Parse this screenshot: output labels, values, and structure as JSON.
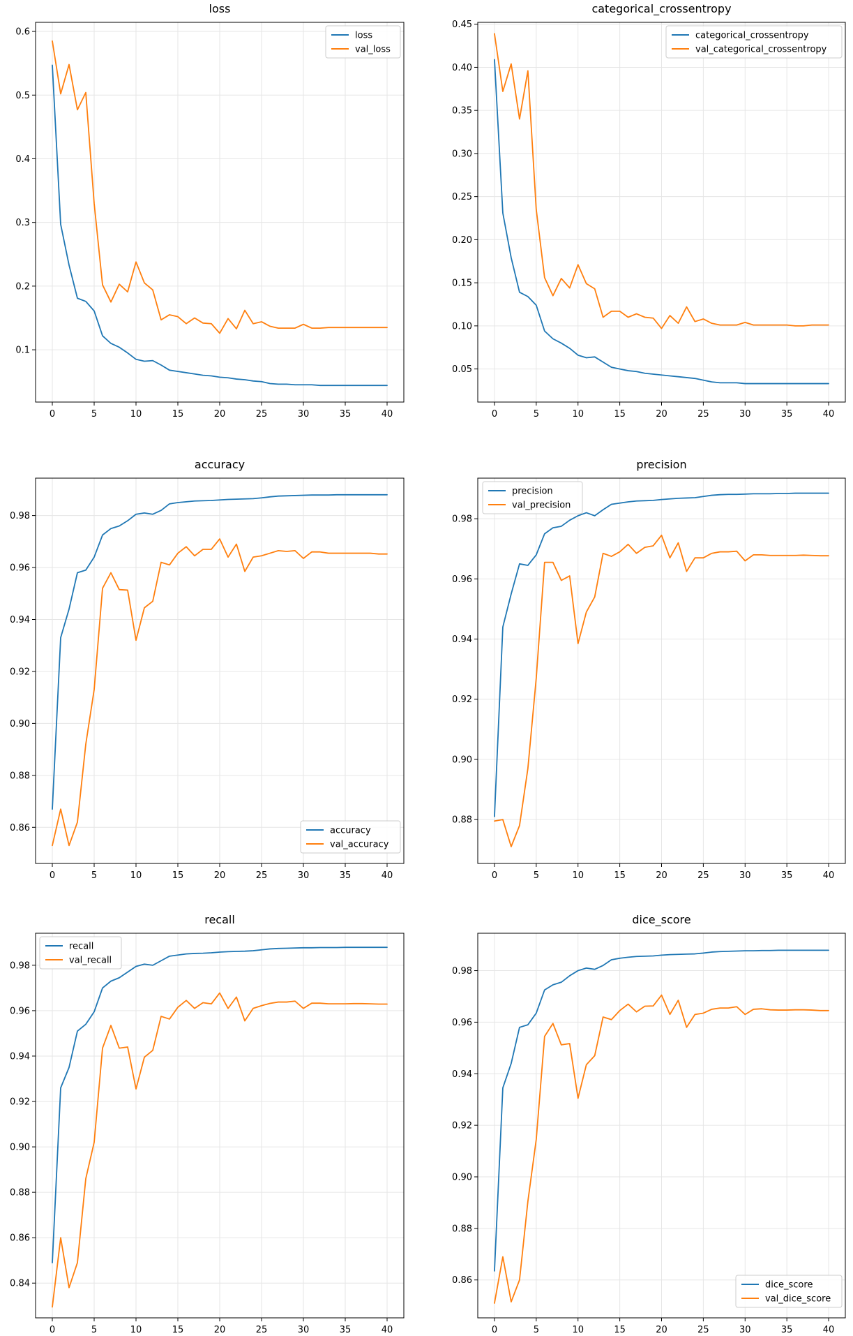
{
  "colors": {
    "train": "#1f77b4",
    "val": "#ff7f0e",
    "grid": "#e6e6e6",
    "frame": "#000000",
    "background": "#ffffff"
  },
  "chart_data": [
    {
      "type": "line",
      "title": "loss",
      "legend": "upper right",
      "xlim": [
        -2,
        42
      ],
      "xticks": [
        0,
        5,
        10,
        15,
        20,
        25,
        30,
        35,
        40
      ],
      "ylim": [
        0.0179,
        0.6143
      ],
      "yticks": [
        0.1,
        0.2,
        0.3,
        0.4,
        0.5,
        0.6
      ],
      "ytick_labels": [
        "0.1",
        "0.2",
        "0.3",
        "0.4",
        "0.5",
        "0.6"
      ],
      "series": [
        {
          "name": "loss",
          "color_key": "train",
          "values": [
            0.547,
            0.297,
            0.233,
            0.181,
            0.176,
            0.161,
            0.122,
            0.11,
            0.104,
            0.095,
            0.085,
            0.082,
            0.083,
            0.076,
            0.068,
            0.066,
            0.064,
            0.062,
            0.06,
            0.059,
            0.057,
            0.056,
            0.054,
            0.053,
            0.051,
            0.05,
            0.047,
            0.046,
            0.046,
            0.045,
            0.045,
            0.045,
            0.044,
            0.044,
            0.044,
            0.044,
            0.044,
            0.044,
            0.044,
            0.044,
            0.044
          ]
        },
        {
          "name": "val_loss",
          "color_key": "val",
          "values": [
            0.585,
            0.502,
            0.548,
            0.477,
            0.504,
            0.33,
            0.202,
            0.175,
            0.203,
            0.191,
            0.238,
            0.205,
            0.194,
            0.147,
            0.155,
            0.152,
            0.141,
            0.15,
            0.142,
            0.141,
            0.126,
            0.149,
            0.133,
            0.162,
            0.141,
            0.144,
            0.137,
            0.134,
            0.134,
            0.134,
            0.14,
            0.134,
            0.134,
            0.135,
            0.135,
            0.135,
            0.135,
            0.135,
            0.135,
            0.135,
            0.135
          ]
        }
      ]
    },
    {
      "type": "line",
      "title": "categorical_crossentropy",
      "legend": "upper right",
      "xlim": [
        -2,
        42
      ],
      "xticks": [
        0,
        5,
        10,
        15,
        20,
        25,
        30,
        35,
        40
      ],
      "ylim": [
        0.0116,
        0.4522
      ],
      "yticks": [
        0.05,
        0.1,
        0.15,
        0.2,
        0.25,
        0.3,
        0.35,
        0.4,
        0.45
      ],
      "ytick_labels": [
        "0.05",
        "0.10",
        "0.15",
        "0.20",
        "0.25",
        "0.30",
        "0.35",
        "0.40",
        "0.45"
      ],
      "series": [
        {
          "name": "categorical_crossentropy",
          "color_key": "train",
          "values": [
            0.409,
            0.231,
            0.179,
            0.139,
            0.134,
            0.124,
            0.094,
            0.085,
            0.08,
            0.074,
            0.066,
            0.063,
            0.064,
            0.058,
            0.052,
            0.05,
            0.048,
            0.047,
            0.045,
            0.044,
            0.043,
            0.042,
            0.041,
            0.04,
            0.039,
            0.037,
            0.035,
            0.034,
            0.034,
            0.034,
            0.033,
            0.033,
            0.033,
            0.033,
            0.033,
            0.033,
            0.033,
            0.033,
            0.033,
            0.033,
            0.033
          ]
        },
        {
          "name": "val_categorical_crossentropy",
          "color_key": "val",
          "values": [
            0.439,
            0.372,
            0.404,
            0.34,
            0.396,
            0.235,
            0.156,
            0.135,
            0.155,
            0.144,
            0.171,
            0.149,
            0.143,
            0.11,
            0.117,
            0.117,
            0.11,
            0.114,
            0.11,
            0.109,
            0.097,
            0.112,
            0.103,
            0.122,
            0.105,
            0.108,
            0.103,
            0.101,
            0.101,
            0.101,
            0.104,
            0.101,
            0.101,
            0.101,
            0.101,
            0.101,
            0.1,
            0.1,
            0.101,
            0.101,
            0.101
          ]
        }
      ]
    },
    {
      "type": "line",
      "title": "accuracy",
      "legend": "lower right",
      "xlim": [
        -2,
        42
      ],
      "xticks": [
        0,
        5,
        10,
        15,
        20,
        25,
        30,
        35,
        40
      ],
      "ylim": [
        0.8461,
        0.9944
      ],
      "yticks": [
        0.86,
        0.88,
        0.9,
        0.92,
        0.94,
        0.96,
        0.98
      ],
      "ytick_labels": [
        "0.86",
        "0.88",
        "0.90",
        "0.92",
        "0.94",
        "0.96",
        "0.98"
      ],
      "series": [
        {
          "name": "accuracy",
          "color_key": "train",
          "values": [
            0.867,
            0.933,
            0.944,
            0.958,
            0.959,
            0.964,
            0.9725,
            0.975,
            0.976,
            0.978,
            0.9805,
            0.981,
            0.9805,
            0.982,
            0.9845,
            0.985,
            0.9853,
            0.9856,
            0.9857,
            0.9858,
            0.986,
            0.9862,
            0.9863,
            0.9864,
            0.9865,
            0.9868,
            0.9872,
            0.9875,
            0.9876,
            0.9877,
            0.9878,
            0.9879,
            0.9879,
            0.9879,
            0.988,
            0.988,
            0.988,
            0.988,
            0.988,
            0.988,
            0.988
          ]
        },
        {
          "name": "val_accuracy",
          "color_key": "val",
          "values": [
            0.853,
            0.867,
            0.853,
            0.862,
            0.892,
            0.913,
            0.952,
            0.958,
            0.9515,
            0.9513,
            0.932,
            0.9445,
            0.947,
            0.962,
            0.961,
            0.9655,
            0.968,
            0.9645,
            0.967,
            0.967,
            0.971,
            0.964,
            0.969,
            0.9585,
            0.964,
            0.9645,
            0.9655,
            0.9665,
            0.9662,
            0.9665,
            0.9635,
            0.966,
            0.966,
            0.9655,
            0.9655,
            0.9655,
            0.9655,
            0.9655,
            0.9655,
            0.9652,
            0.9652
          ]
        }
      ]
    },
    {
      "type": "line",
      "title": "precision",
      "legend": "upper left",
      "xlim": [
        -2,
        42
      ],
      "xticks": [
        0,
        5,
        10,
        15,
        20,
        25,
        30,
        35,
        40
      ],
      "ylim": [
        0.8654,
        0.9935
      ],
      "yticks": [
        0.88,
        0.9,
        0.92,
        0.94,
        0.96,
        0.98
      ],
      "ytick_labels": [
        "0.88",
        "0.90",
        "0.92",
        "0.94",
        "0.96",
        "0.98"
      ],
      "series": [
        {
          "name": "precision",
          "color_key": "train",
          "values": [
            0.881,
            0.944,
            0.955,
            0.965,
            0.9645,
            0.968,
            0.975,
            0.977,
            0.9775,
            0.9795,
            0.981,
            0.982,
            0.981,
            0.983,
            0.9848,
            0.9852,
            0.9856,
            0.9859,
            0.986,
            0.9861,
            0.9864,
            0.9866,
            0.9868,
            0.9869,
            0.987,
            0.9874,
            0.9878,
            0.988,
            0.9881,
            0.9881,
            0.9882,
            0.9883,
            0.9883,
            0.9883,
            0.9884,
            0.9884,
            0.9885,
            0.9885,
            0.9885,
            0.9885,
            0.9885
          ]
        },
        {
          "name": "val_precision",
          "color_key": "val",
          "values": [
            0.8795,
            0.88,
            0.871,
            0.878,
            0.897,
            0.927,
            0.9655,
            0.9655,
            0.9595,
            0.961,
            0.9385,
            0.949,
            0.954,
            0.9685,
            0.9675,
            0.969,
            0.9715,
            0.9685,
            0.9705,
            0.971,
            0.9745,
            0.967,
            0.972,
            0.9625,
            0.967,
            0.967,
            0.9685,
            0.969,
            0.969,
            0.9692,
            0.966,
            0.968,
            0.968,
            0.9678,
            0.9678,
            0.9678,
            0.9678,
            0.9679,
            0.9678,
            0.9677,
            0.9677
          ]
        }
      ]
    },
    {
      "type": "line",
      "title": "recall",
      "legend": "upper left",
      "xlim": [
        -2,
        42
      ],
      "xticks": [
        0,
        5,
        10,
        15,
        20,
        25,
        30,
        35,
        40
      ],
      "ylim": [
        0.8247,
        0.9941
      ],
      "yticks": [
        0.84,
        0.86,
        0.88,
        0.9,
        0.92,
        0.94,
        0.96,
        0.98
      ],
      "ytick_labels": [
        "0.84",
        "0.86",
        "0.88",
        "0.90",
        "0.92",
        "0.94",
        "0.96",
        "0.98"
      ],
      "series": [
        {
          "name": "recall",
          "color_key": "train",
          "values": [
            0.849,
            0.926,
            0.935,
            0.951,
            0.954,
            0.9595,
            0.97,
            0.973,
            0.9745,
            0.977,
            0.9795,
            0.9805,
            0.98,
            0.982,
            0.984,
            0.9845,
            0.985,
            0.9852,
            0.9853,
            0.9855,
            0.9858,
            0.986,
            0.9861,
            0.9862,
            0.9864,
            0.9868,
            0.9872,
            0.9874,
            0.9875,
            0.9876,
            0.9877,
            0.9877,
            0.9878,
            0.9878,
            0.9878,
            0.9879,
            0.9879,
            0.9879,
            0.9879,
            0.9879,
            0.9879
          ]
        },
        {
          "name": "val_recall",
          "color_key": "val",
          "values": [
            0.8295,
            0.86,
            0.838,
            0.849,
            0.886,
            0.902,
            0.9435,
            0.9535,
            0.9435,
            0.944,
            0.9255,
            0.9395,
            0.9425,
            0.9575,
            0.9563,
            0.9615,
            0.9645,
            0.961,
            0.9635,
            0.963,
            0.9678,
            0.961,
            0.966,
            0.9555,
            0.961,
            0.9622,
            0.9632,
            0.9638,
            0.9638,
            0.9642,
            0.961,
            0.9633,
            0.9633,
            0.963,
            0.963,
            0.963,
            0.9631,
            0.9631,
            0.963,
            0.9629,
            0.9629
          ]
        }
      ]
    },
    {
      "type": "line",
      "title": "dice_score",
      "legend": "lower right",
      "xlim": [
        -2,
        42
      ],
      "xticks": [
        0,
        5,
        10,
        15,
        20,
        25,
        30,
        35,
        40
      ],
      "ylim": [
        0.8453,
        0.9945
      ],
      "yticks": [
        0.86,
        0.88,
        0.9,
        0.92,
        0.94,
        0.96,
        0.98
      ],
      "ytick_labels": [
        "0.86",
        "0.88",
        "0.90",
        "0.92",
        "0.94",
        "0.96",
        "0.98"
      ],
      "series": [
        {
          "name": "dice_score",
          "color_key": "train",
          "values": [
            0.8635,
            0.9345,
            0.944,
            0.958,
            0.959,
            0.9635,
            0.9725,
            0.9745,
            0.9755,
            0.978,
            0.98,
            0.981,
            0.9805,
            0.982,
            0.9842,
            0.9848,
            0.9852,
            0.9855,
            0.9856,
            0.9857,
            0.986,
            0.9862,
            0.9863,
            0.9864,
            0.9865,
            0.9868,
            0.9872,
            0.9874,
            0.9875,
            0.9876,
            0.9877,
            0.9877,
            0.9878,
            0.9878,
            0.9879,
            0.9879,
            0.9879,
            0.9879,
            0.9879,
            0.9879,
            0.9879
          ]
        },
        {
          "name": "val_dice_score",
          "color_key": "val",
          "values": [
            0.851,
            0.869,
            0.8515,
            0.86,
            0.8905,
            0.9145,
            0.9545,
            0.9595,
            0.9512,
            0.9517,
            0.9305,
            0.9435,
            0.947,
            0.962,
            0.961,
            0.9645,
            0.967,
            0.964,
            0.9662,
            0.9663,
            0.9705,
            0.963,
            0.9685,
            0.958,
            0.963,
            0.9635,
            0.965,
            0.9655,
            0.9655,
            0.966,
            0.963,
            0.965,
            0.9652,
            0.9648,
            0.9647,
            0.9647,
            0.9648,
            0.9648,
            0.9647,
            0.9645,
            0.9645
          ]
        }
      ]
    }
  ]
}
